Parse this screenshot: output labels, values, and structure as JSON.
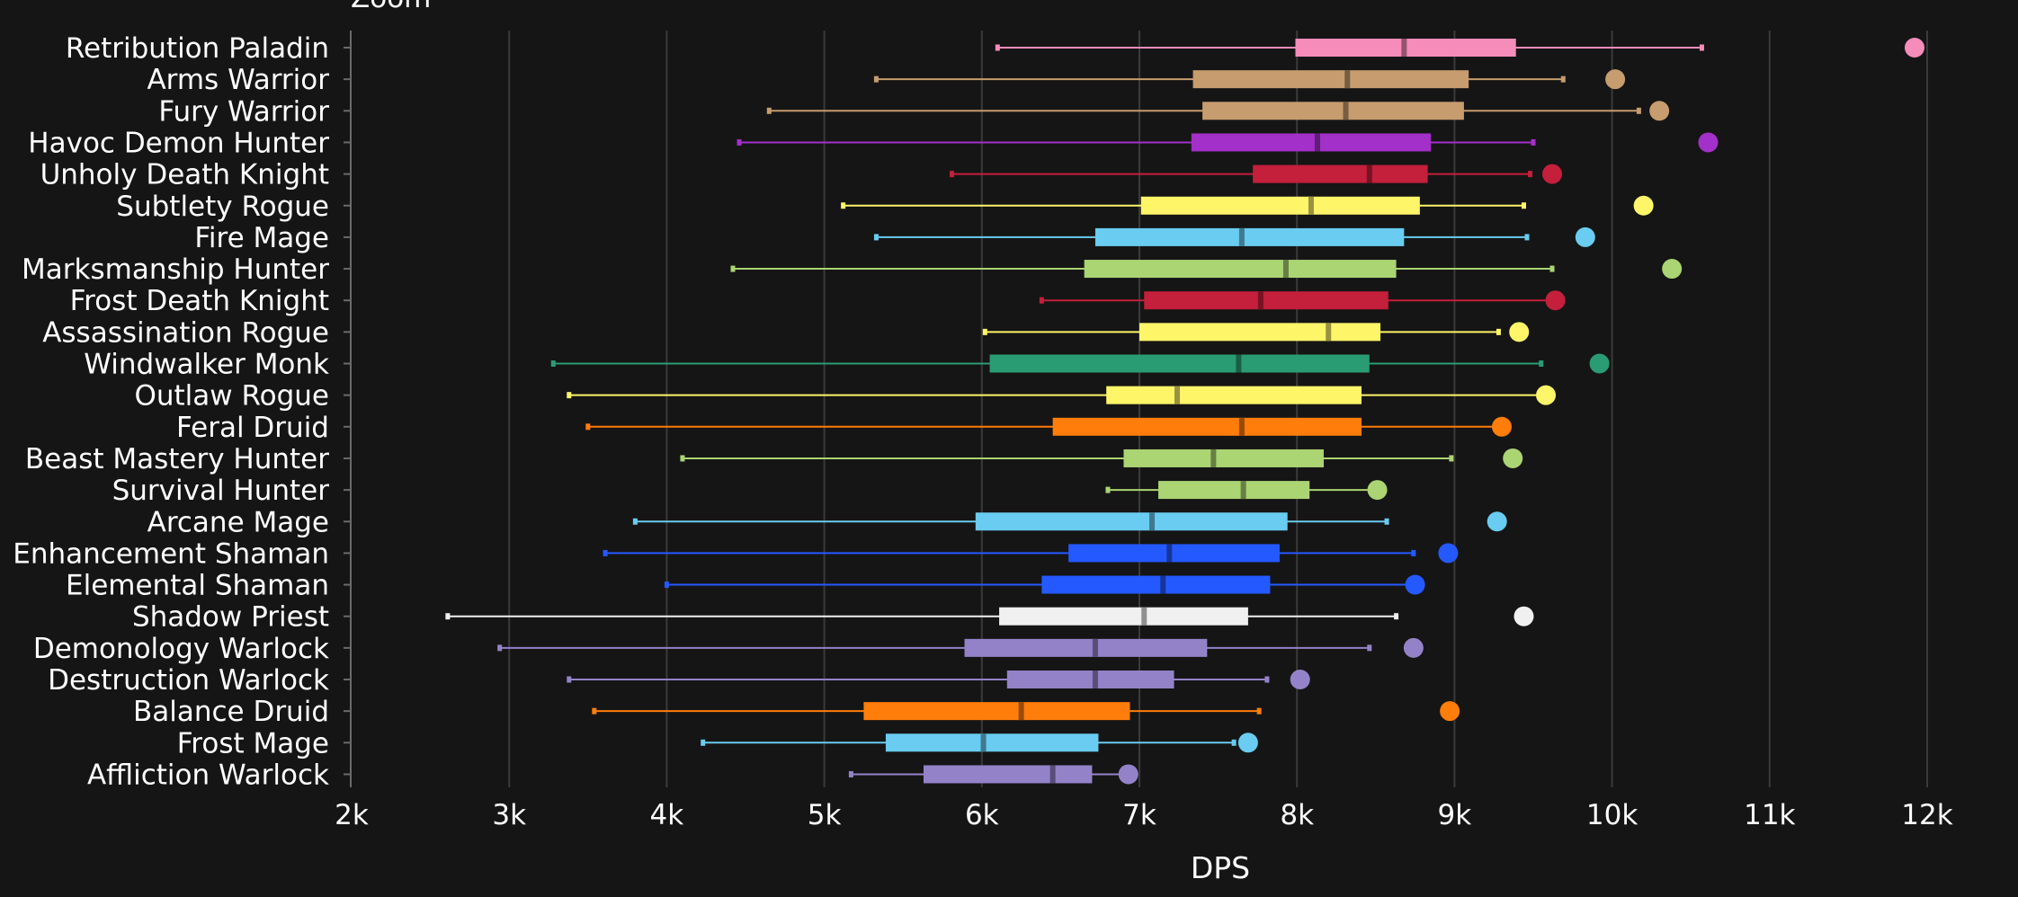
{
  "chart_data": {
    "type": "boxplot",
    "title": "",
    "top_label": "Zoom",
    "xlabel": "DPS",
    "ylabel": "",
    "xlim": [
      2000,
      12000
    ],
    "x_ticks": [
      2000,
      3000,
      4000,
      5000,
      6000,
      7000,
      8000,
      9000,
      10000,
      11000,
      12000
    ],
    "x_tick_labels": [
      "2k",
      "3k",
      "4k",
      "5k",
      "6k",
      "7k",
      "8k",
      "9k",
      "10k",
      "11k",
      "12k"
    ],
    "grid": true,
    "series": [
      {
        "name": "Retribution Paladin",
        "color": "#F58CBA",
        "min": 6100,
        "q1": 7990,
        "median": 8680,
        "q3": 9390,
        "max": 10570,
        "outlier": 11920
      },
      {
        "name": "Arms Warrior",
        "color": "#C79C6E",
        "min": 5330,
        "q1": 7340,
        "median": 8320,
        "q3": 9090,
        "max": 9690,
        "outlier": 10020
      },
      {
        "name": "Fury Warrior",
        "color": "#C79C6E",
        "min": 4650,
        "q1": 7400,
        "median": 8310,
        "q3": 9060,
        "max": 10170,
        "outlier": 10300
      },
      {
        "name": "Havoc Demon Hunter",
        "color": "#A330C9",
        "min": 4460,
        "q1": 7330,
        "median": 8130,
        "q3": 8850,
        "max": 9500,
        "outlier": 10610
      },
      {
        "name": "Unholy Death Knight",
        "color": "#C41F3B",
        "min": 5810,
        "q1": 7720,
        "median": 8460,
        "q3": 8830,
        "max": 9480,
        "outlier": 9620
      },
      {
        "name": "Subtlety Rogue",
        "color": "#FFF569",
        "min": 5120,
        "q1": 7010,
        "median": 8090,
        "q3": 8780,
        "max": 9440,
        "outlier": 10200
      },
      {
        "name": "Fire Mage",
        "color": "#69CCF0",
        "min": 5330,
        "q1": 6720,
        "median": 7650,
        "q3": 8680,
        "max": 9460,
        "outlier": 9830
      },
      {
        "name": "Marksmanship Hunter",
        "color": "#ABD473",
        "min": 4420,
        "q1": 6650,
        "median": 7930,
        "q3": 8630,
        "max": 9620,
        "outlier": 10380
      },
      {
        "name": "Frost Death Knight",
        "color": "#C41F3B",
        "min": 6380,
        "q1": 7030,
        "median": 7770,
        "q3": 8580,
        "max": 9600,
        "outlier": 9640
      },
      {
        "name": "Assassination Rogue",
        "color": "#FFF569",
        "min": 6020,
        "q1": 7000,
        "median": 8200,
        "q3": 8530,
        "max": 9280,
        "outlier": 9410
      },
      {
        "name": "Windwalker Monk",
        "color": "#2A9C74",
        "min": 3280,
        "q1": 6050,
        "median": 7630,
        "q3": 8460,
        "max": 9550,
        "outlier": 9920
      },
      {
        "name": "Outlaw Rogue",
        "color": "#FFF569",
        "min": 3380,
        "q1": 6790,
        "median": 7240,
        "q3": 8410,
        "max": 9580,
        "outlier": 9580
      },
      {
        "name": "Feral Druid",
        "color": "#FF7D0A",
        "min": 3500,
        "q1": 6450,
        "median": 7650,
        "q3": 8410,
        "max": 9300,
        "outlier": 9300
      },
      {
        "name": "Beast Mastery Hunter",
        "color": "#ABD473",
        "min": 4100,
        "q1": 6900,
        "median": 7470,
        "q3": 8170,
        "max": 8980,
        "outlier": 9370
      },
      {
        "name": "Survival Hunter",
        "color": "#ABD473",
        "min": 6800,
        "q1": 7120,
        "median": 7660,
        "q3": 8080,
        "max": 8510,
        "outlier": 8510
      },
      {
        "name": "Arcane Mage",
        "color": "#69CCF0",
        "min": 3800,
        "q1": 5960,
        "median": 7080,
        "q3": 7940,
        "max": 8570,
        "outlier": 9270
      },
      {
        "name": "Enhancement Shaman",
        "color": "#2459FF",
        "min": 3610,
        "q1": 6550,
        "median": 7190,
        "q3": 7890,
        "max": 8740,
        "outlier": 8960
      },
      {
        "name": "Elemental Shaman",
        "color": "#2459FF",
        "min": 4000,
        "q1": 6380,
        "median": 7150,
        "q3": 7830,
        "max": 8750,
        "outlier": 8750
      },
      {
        "name": "Shadow Priest",
        "color": "#F0F0F0",
        "min": 2610,
        "q1": 6110,
        "median": 7030,
        "q3": 7690,
        "max": 8630,
        "outlier": 9440
      },
      {
        "name": "Demonology Warlock",
        "color": "#9482C9",
        "min": 2940,
        "q1": 5890,
        "median": 6720,
        "q3": 7430,
        "max": 8460,
        "outlier": 8740
      },
      {
        "name": "Destruction Warlock",
        "color": "#9482C9",
        "min": 3380,
        "q1": 6160,
        "median": 6720,
        "q3": 7220,
        "max": 7810,
        "outlier": 8020
      },
      {
        "name": "Balance Druid",
        "color": "#FF7D0A",
        "min": 3540,
        "q1": 5250,
        "median": 6250,
        "q3": 6940,
        "max": 7760,
        "outlier": 8970
      },
      {
        "name": "Frost Mage",
        "color": "#69CCF0",
        "min": 4230,
        "q1": 5390,
        "median": 6010,
        "q3": 6740,
        "max": 7600,
        "outlier": 7690
      },
      {
        "name": "Affliction Warlock",
        "color": "#9482C9",
        "min": 5170,
        "q1": 5630,
        "median": 6450,
        "q3": 6700,
        "max": 6930,
        "outlier": 6930
      }
    ]
  }
}
